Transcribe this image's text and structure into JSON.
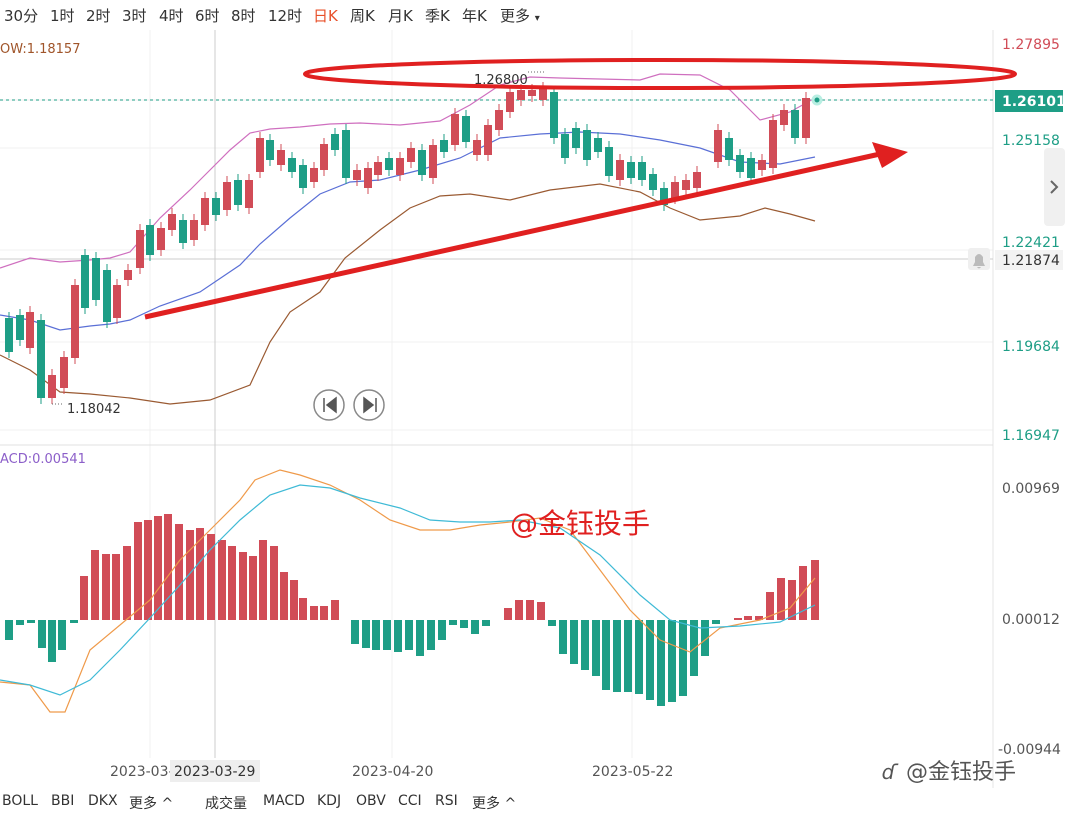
{
  "periods": [
    "30分",
    "1时",
    "2时",
    "3时",
    "4时",
    "6时",
    "8时",
    "12时",
    "日K",
    "周K",
    "月K",
    "季K",
    "年K",
    "更多"
  ],
  "active_period": "日K",
  "main_indicator": "OW:1.18157",
  "sub_indicator": "ACD:0.00541",
  "price_axis": [
    "1.27895",
    "1.26101",
    "1.25158",
    "1.22421",
    "1.21874",
    "1.19684",
    "1.16947"
  ],
  "current_price": "1.26101",
  "crosshair_price": "1.21874",
  "high_label": "1.26800",
  "low_label": "1.18042",
  "macd_axis": [
    "0.00969",
    "0.00012",
    "-0.00944"
  ],
  "date_labels": [
    "2023-03-",
    "2023-03-29",
    "2023-04-20",
    "2023-05-22"
  ],
  "watermark": "@金钰投手",
  "watermark_footer": "@金钰投手",
  "indicators_left": [
    "BOLL",
    "BBI",
    "DKX",
    "更多 ^"
  ],
  "indicators_right": [
    "成交量",
    "MACD",
    "KDJ",
    "OBV",
    "CCI",
    "RSI",
    "更多 ^"
  ],
  "colors": {
    "up": "#d14c57",
    "down": "#1e9e86",
    "accent": "#e8502a",
    "highlight": "#1e9e86"
  },
  "icons": [
    "prev-icon",
    "next-icon",
    "bell-icon",
    "chevron-right-icon"
  ]
}
